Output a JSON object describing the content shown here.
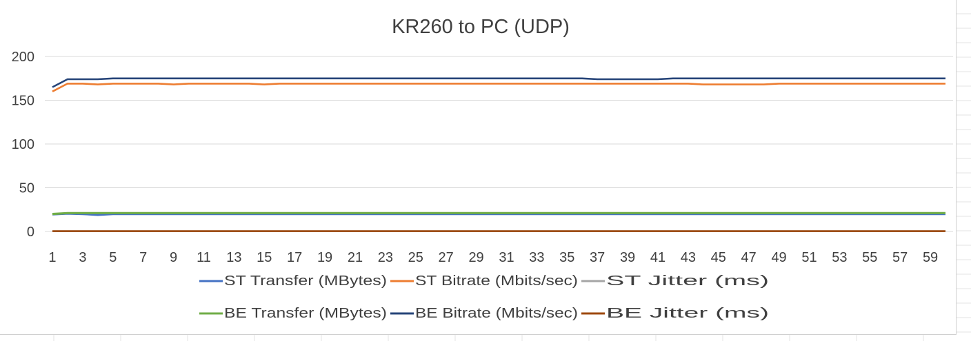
{
  "chart_data": {
    "type": "line",
    "title": "KR260 to PC (UDP)",
    "xlabel": "",
    "ylabel": "",
    "ylim": [
      0,
      200
    ],
    "yticks": [
      "0",
      "50",
      "100",
      "150",
      "200"
    ],
    "xticks": [
      "1",
      "3",
      "5",
      "7",
      "9",
      "11",
      "13",
      "15",
      "17",
      "19",
      "21",
      "23",
      "25",
      "27",
      "29",
      "31",
      "33",
      "35",
      "37",
      "39",
      "41",
      "43",
      "45",
      "47",
      "49",
      "51",
      "53",
      "55",
      "57",
      "59"
    ],
    "x": [
      1,
      2,
      3,
      4,
      5,
      6,
      7,
      8,
      9,
      10,
      11,
      12,
      13,
      14,
      15,
      16,
      17,
      18,
      19,
      20,
      21,
      22,
      23,
      24,
      25,
      26,
      27,
      28,
      29,
      30,
      31,
      32,
      33,
      34,
      35,
      36,
      37,
      38,
      39,
      40,
      41,
      42,
      43,
      44,
      45,
      46,
      47,
      48,
      49,
      50,
      51,
      52,
      53,
      54,
      55,
      56,
      57,
      58,
      59,
      60
    ],
    "grid": true,
    "legend_position": "bottom",
    "series": [
      {
        "name": "ST Transfer (MBytes)",
        "color": "#4472C4",
        "values": [
          19.5,
          20.5,
          20,
          19,
          20,
          20,
          20,
          20,
          20,
          20,
          20,
          20,
          20,
          20,
          20,
          20,
          20,
          20,
          20,
          20,
          20,
          20,
          20,
          20,
          20,
          20,
          20,
          20,
          20,
          20,
          20,
          20,
          20,
          20,
          20,
          20,
          20,
          20,
          20,
          20,
          20,
          20,
          20,
          20,
          20,
          20,
          20,
          20,
          20,
          20,
          20,
          20,
          20,
          20,
          20,
          20,
          20,
          20,
          20,
          20
        ]
      },
      {
        "name": "ST Bitrate (Mbits/sec)",
        "color": "#ED7D31",
        "values": [
          160,
          169,
          169,
          168,
          169,
          169,
          169,
          169,
          168,
          169,
          169,
          169,
          169,
          169,
          168,
          169,
          169,
          169,
          169,
          169,
          169,
          169,
          169,
          169,
          169,
          169,
          169,
          169,
          169,
          169,
          169,
          169,
          169,
          169,
          169,
          169,
          169,
          169,
          169,
          169,
          169,
          169,
          169,
          168,
          168,
          168,
          168,
          168,
          169,
          169,
          169,
          169,
          169,
          169,
          169,
          169,
          169,
          169,
          169,
          169
        ]
      },
      {
        "name": "ST Jitter (ms)",
        "color": "#A5A5A5",
        "values": [
          0.2,
          0.2,
          0.2,
          0.2,
          0.2,
          0.2,
          0.2,
          0.2,
          0.2,
          0.2,
          0.2,
          0.2,
          0.2,
          0.2,
          0.2,
          0.2,
          0.2,
          0.2,
          0.2,
          0.2,
          0.2,
          0.2,
          0.2,
          0.2,
          0.2,
          0.2,
          0.2,
          0.2,
          0.2,
          0.2,
          0.2,
          0.2,
          0.2,
          0.2,
          0.2,
          0.2,
          0.2,
          0.2,
          0.2,
          0.2,
          0.2,
          0.2,
          0.2,
          0.2,
          0.2,
          0.2,
          0.2,
          0.2,
          0.2,
          0.2,
          0.2,
          0.2,
          0.2,
          0.2,
          0.2,
          0.2,
          0.2,
          0.2,
          0.2,
          0.2
        ]
      },
      {
        "name": "BE Transfer (MBytes)",
        "color": "#70AD47",
        "values": [
          20,
          21,
          21,
          21,
          21,
          21,
          21,
          21,
          21,
          21,
          21,
          21,
          21,
          21,
          21,
          21,
          21,
          21,
          21,
          21,
          21,
          21,
          21,
          21,
          21,
          21,
          21,
          21,
          21,
          21,
          21,
          21,
          21,
          21,
          21,
          21,
          21,
          21,
          21,
          21,
          21,
          21,
          21,
          21,
          21,
          21,
          21,
          21,
          21,
          21,
          21,
          21,
          21,
          21,
          21,
          21,
          21,
          21,
          21,
          21
        ]
      },
      {
        "name": "BE Bitrate (Mbits/sec)",
        "color": "#264478",
        "values": [
          165,
          174,
          174,
          174,
          175,
          175,
          175,
          175,
          175,
          175,
          175,
          175,
          175,
          175,
          175,
          175,
          175,
          175,
          175,
          175,
          175,
          175,
          175,
          175,
          175,
          175,
          175,
          175,
          175,
          175,
          175,
          175,
          175,
          175,
          175,
          175,
          174,
          174,
          174,
          174,
          174,
          175,
          175,
          175,
          175,
          175,
          175,
          175,
          175,
          175,
          175,
          175,
          175,
          175,
          175,
          175,
          175,
          175,
          175,
          175
        ]
      },
      {
        "name": "BE Jitter (ms)",
        "color": "#9E480E",
        "values": [
          0.3,
          0.3,
          0.3,
          0.3,
          0.3,
          0.3,
          0.3,
          0.3,
          0.3,
          0.3,
          0.3,
          0.3,
          0.3,
          0.3,
          0.3,
          0.3,
          0.3,
          0.3,
          0.3,
          0.3,
          0.3,
          0.3,
          0.3,
          0.3,
          0.3,
          0.3,
          0.3,
          0.3,
          0.3,
          0.3,
          0.3,
          0.3,
          0.3,
          0.3,
          0.3,
          0.3,
          0.3,
          0.3,
          0.3,
          0.3,
          0.3,
          0.3,
          0.3,
          0.3,
          0.3,
          0.3,
          0.3,
          0.3,
          0.3,
          0.3,
          0.3,
          0.3,
          0.3,
          0.3,
          0.3,
          0.3,
          0.3,
          0.3,
          0.3,
          0.3
        ]
      }
    ]
  }
}
